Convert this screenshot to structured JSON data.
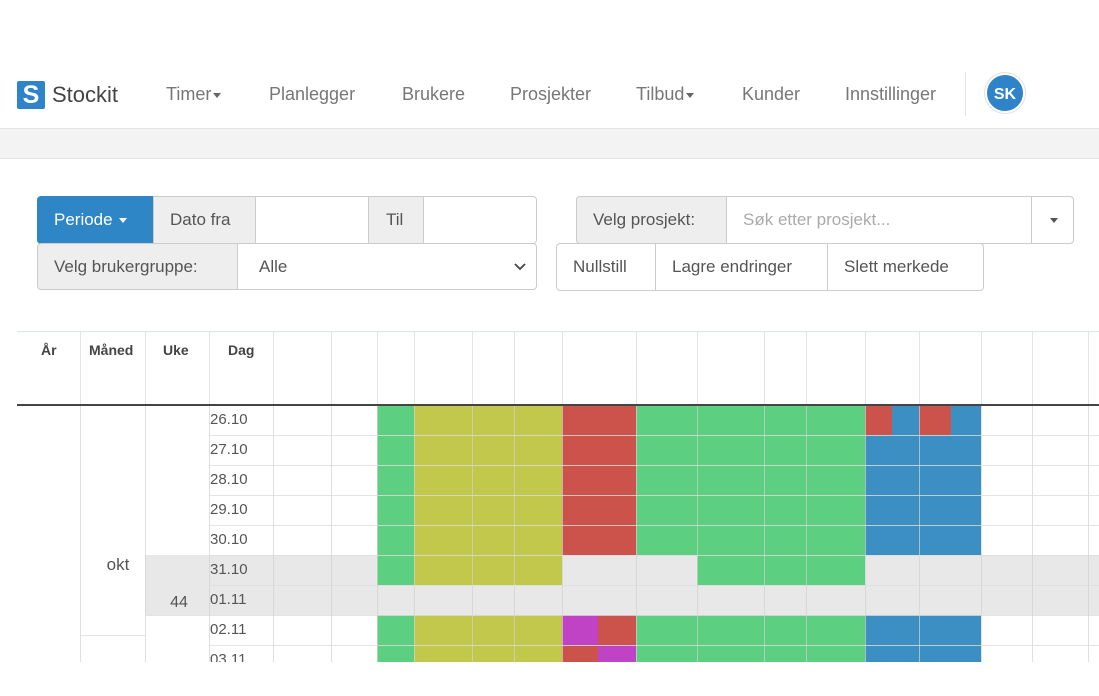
{
  "brand": {
    "logo_letter": "S",
    "name": "Stockit"
  },
  "nav": {
    "items": [
      {
        "label": "Timer",
        "dropdown": true
      },
      {
        "label": "Planlegger",
        "dropdown": false
      },
      {
        "label": "Brukere",
        "dropdown": false
      },
      {
        "label": "Prosjekter",
        "dropdown": false
      },
      {
        "label": "Tilbud",
        "dropdown": true
      },
      {
        "label": "Kunder",
        "dropdown": false
      },
      {
        "label": "Innstillinger",
        "dropdown": false
      }
    ],
    "avatar": "SK"
  },
  "filters": {
    "period_button": "Periode",
    "date_from_label": "Dato fra",
    "date_from_value": "",
    "to_label": "Til",
    "to_value": "",
    "project_label": "Velg prosjekt:",
    "project_placeholder": "Søk etter prosjekt...",
    "usergroup_label": "Velg brukergruppe:",
    "usergroup_value": "Alle",
    "reset_button": "Nullstill",
    "save_button": "Lagre endringer",
    "delete_button": "Slett merkede"
  },
  "table": {
    "headers": {
      "year": "År",
      "month": "Måned",
      "week": "Uke",
      "day": "Dag"
    },
    "month_value": "okt",
    "week_value": "44",
    "days": [
      "26.10",
      "27.10",
      "28.10",
      "29.10",
      "30.10",
      "31.10",
      "01.11",
      "02.11",
      "03.11"
    ],
    "weekend_rows": [
      5,
      6
    ],
    "colors": {
      "green": "#5ccf80",
      "olive": "#c1c84b",
      "red": "#cc534c",
      "blue": "#3b8fc2",
      "purple": "#c043c6",
      "weekend": "#e8e8e8"
    }
  }
}
